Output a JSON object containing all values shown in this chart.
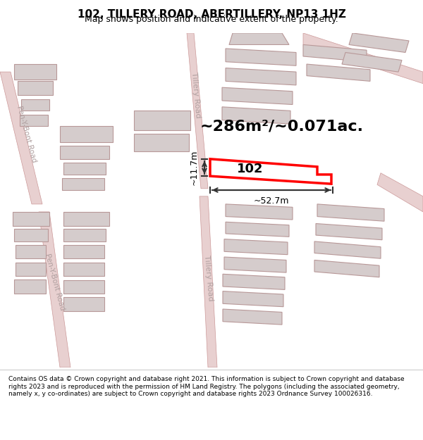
{
  "title": "102, TILLERY ROAD, ABERTILLERY, NP13 1HZ",
  "subtitle": "Map shows position and indicative extent of the property.",
  "footer": "Contains OS data © Crown copyright and database right 2021. This information is subject to Crown copyright and database rights 2023 and is reproduced with the permission of HM Land Registry. The polygons (including the associated geometry, namely x, y co-ordinates) are subject to Crown copyright and database rights 2023 Ordnance Survey 100026316.",
  "bg_color": "#f5f0f0",
  "map_bg": "#ffffff",
  "area_label": "~286m²/~0.071ac.",
  "property_label": "102",
  "dim_width": "~52.7m",
  "dim_height": "~11.7m",
  "outline_color": "#ff0000",
  "road_color": "#e8b0b0",
  "building_color": "#d0c8c8",
  "road_outline_color": "#cc8888",
  "dim_line_color": "#333333",
  "road_label_color": "#aaaaaa"
}
